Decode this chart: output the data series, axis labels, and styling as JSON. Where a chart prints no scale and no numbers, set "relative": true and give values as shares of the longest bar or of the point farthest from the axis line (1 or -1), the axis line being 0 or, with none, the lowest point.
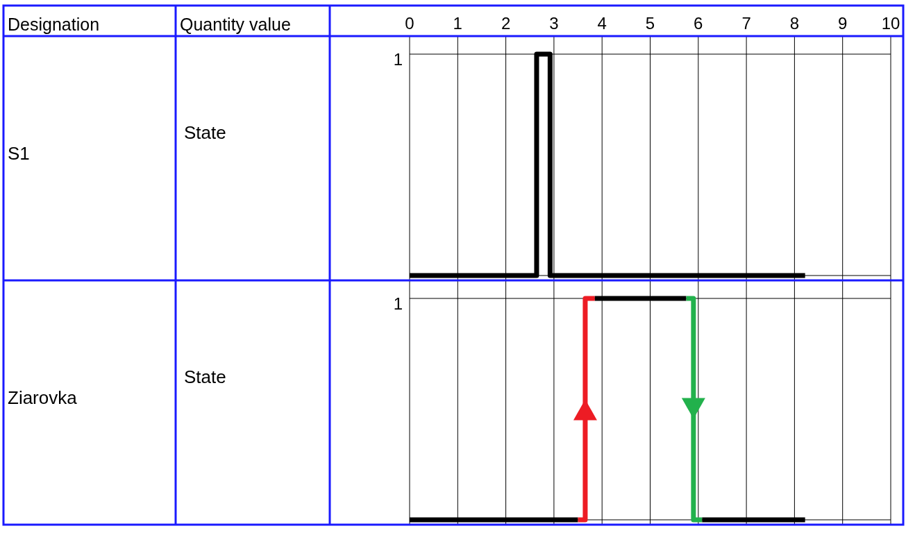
{
  "chart_data": [
    {
      "type": "step",
      "ylabel": "State",
      "annotations": [
        "Designation",
        "Quantity value",
        "S1",
        "1"
      ],
      "xlim": [
        0,
        10
      ],
      "xticks": [
        0,
        1,
        2,
        3,
        4,
        5,
        6,
        7,
        8,
        9,
        10
      ],
      "relative": true,
      "grid": true,
      "series": [
        {
          "color": "#000000",
          "x": [
            0,
            2.64,
            2.92,
            8.22
          ],
          "values": [
            0,
            1,
            0,
            0
          ]
        }
      ]
    },
    {
      "type": "step",
      "ylabel": "State",
      "annotations": [
        "Ziarovka",
        "1"
      ],
      "xlim": [
        0,
        10
      ],
      "xticks": [
        0,
        1,
        2,
        3,
        4,
        5,
        6,
        7,
        8,
        9,
        10
      ],
      "relative": true,
      "grid": true,
      "tick_labels": "y",
      "series": [
        {
          "color": "#000000",
          "x": [
            0,
            3.5
          ],
          "values": [
            0,
            0
          ]
        },
        {
          "color": "#ed1c24",
          "x": [
            3.5,
            3.65,
            3.85
          ],
          "values": [
            0,
            1,
            1
          ]
        },
        {
          "color": "#000000",
          "x": [
            3.85,
            5.75
          ],
          "values": [
            1,
            1
          ]
        },
        {
          "color": "#22b14c",
          "x": [
            5.75,
            5.9,
            6.08
          ],
          "values": [
            1,
            0,
            0
          ]
        },
        {
          "color": "#000000",
          "x": [
            6.08,
            8.22
          ],
          "values": [
            0,
            0
          ]
        }
      ]
    }
  ]
}
